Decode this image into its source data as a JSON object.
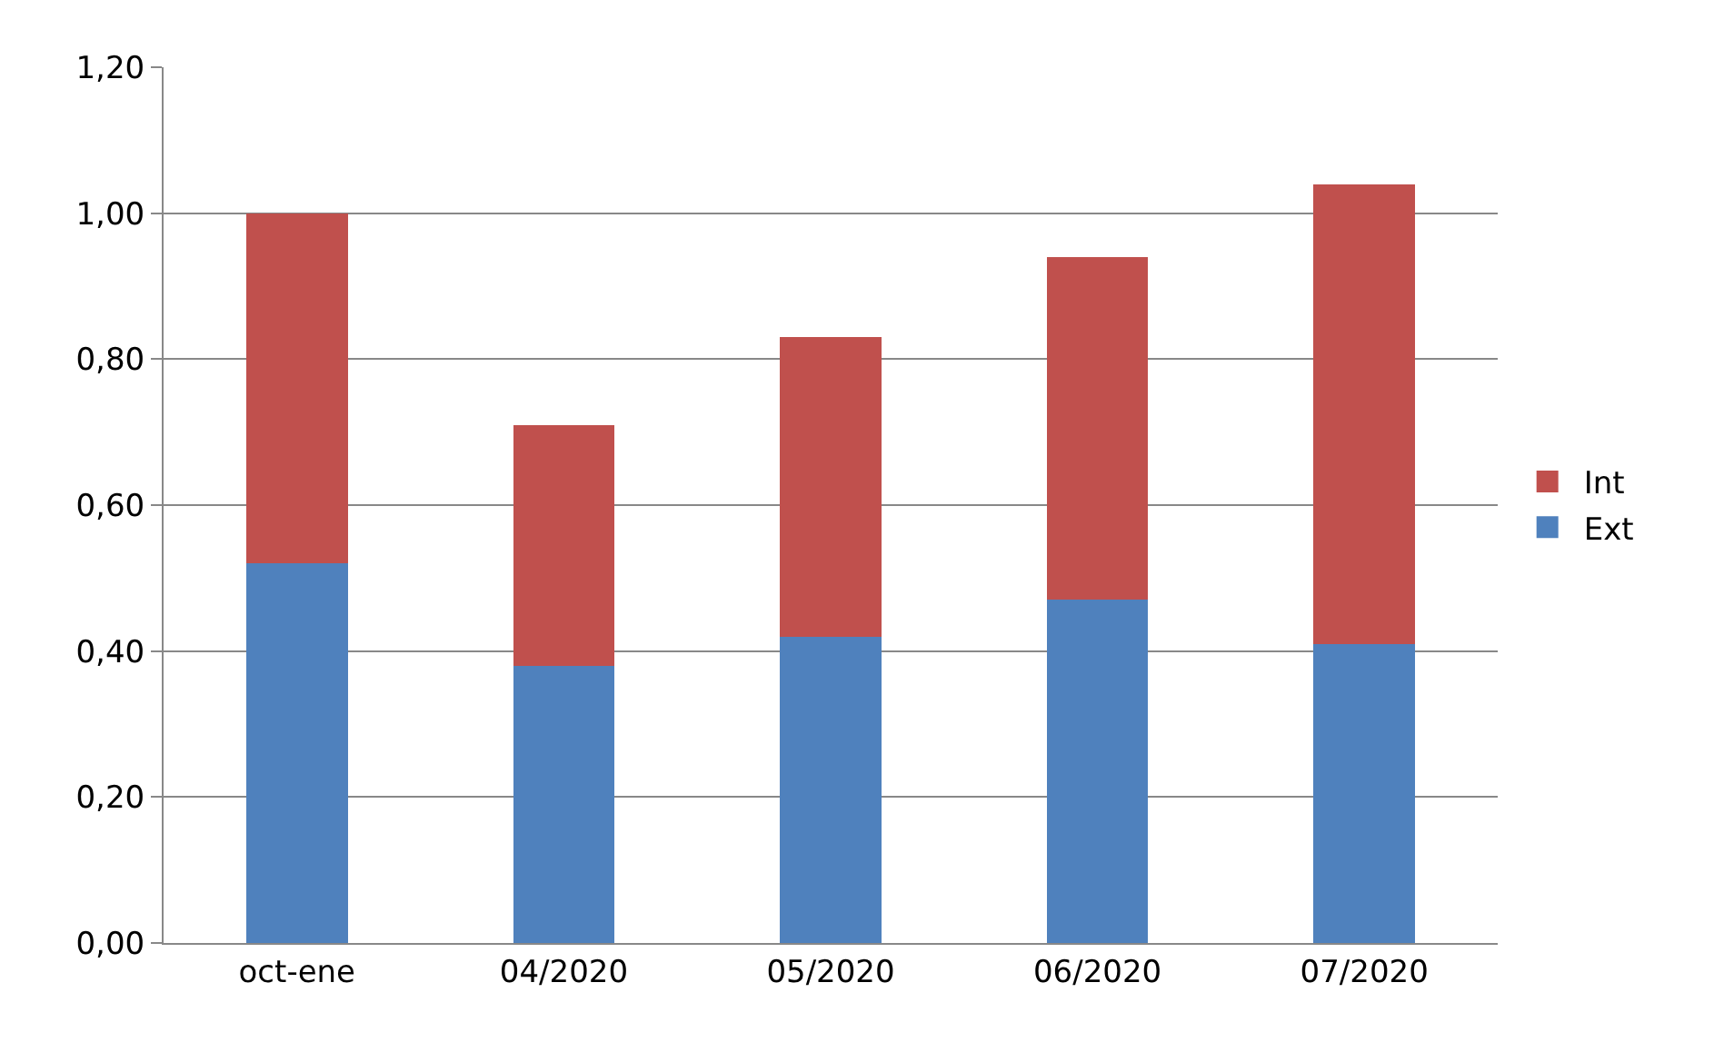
{
  "chart_data": {
    "type": "bar",
    "stacked": true,
    "categories": [
      "oct-ene",
      "04/2020",
      "05/2020",
      "06/2020",
      "07/2020"
    ],
    "series": [
      {
        "name": "Ext",
        "color": "#4f81bd",
        "values": [
          0.52,
          0.38,
          0.42,
          0.47,
          0.41
        ]
      },
      {
        "name": "Int",
        "color": "#c0504d",
        "values": [
          0.48,
          0.33,
          0.41,
          0.47,
          0.63
        ]
      }
    ],
    "ylim": [
      0,
      1.2
    ],
    "yticks": [
      {
        "value": 0,
        "label": "0,00"
      },
      {
        "value": 0.2,
        "label": "0,20"
      },
      {
        "value": 0.4,
        "label": "0,40"
      },
      {
        "value": 0.6,
        "label": "0,60"
      },
      {
        "value": 0.8,
        "label": "0,80"
      },
      {
        "value": 1,
        "label": "1,00"
      },
      {
        "value": 1.2,
        "label": "1,20"
      }
    ],
    "grid": "y",
    "legend": "right"
  }
}
